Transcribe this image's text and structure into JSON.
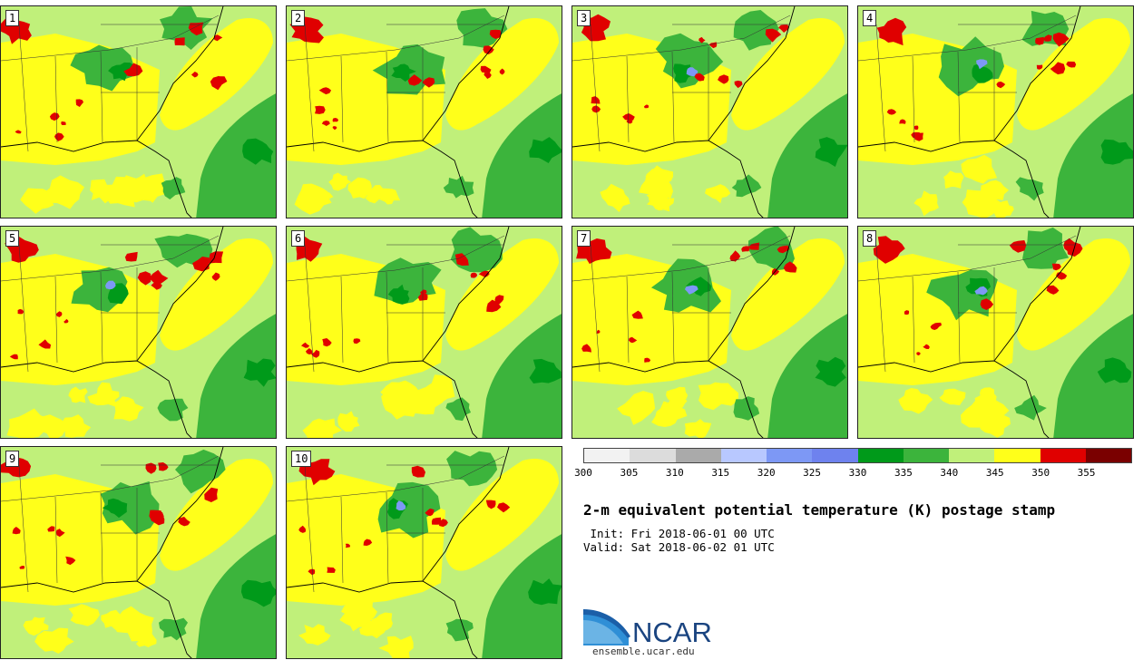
{
  "colorbar": {
    "colors": [
      "#f2f2f2",
      "#dcdcdc",
      "#aaaaaa",
      "#b8c8ff",
      "#7d98f5",
      "#6e82ee",
      "#009a1a",
      "#3cb43c",
      "#c0f07a",
      "#ffff1a",
      "#e00000",
      "#7a0000"
    ],
    "labels": [
      "300",
      "305",
      "310",
      "315",
      "320",
      "325",
      "330",
      "335",
      "340",
      "345",
      "350",
      "355"
    ]
  },
  "members": [
    {
      "label": "1"
    },
    {
      "label": "2"
    },
    {
      "label": "3"
    },
    {
      "label": "4"
    },
    {
      "label": "5"
    },
    {
      "label": "6"
    },
    {
      "label": "7"
    },
    {
      "label": "8"
    },
    {
      "label": "9"
    },
    {
      "label": "10"
    }
  ],
  "title": "2-m equivalent potential temperature (K) postage stamp",
  "init": " Init: Fri 2018-06-01 00 UTC",
  "valid": "Valid: Sat 2018-06-02 01 UTC",
  "logo": {
    "name": "NCAR",
    "url": "ensemble.ucar.edu"
  }
}
